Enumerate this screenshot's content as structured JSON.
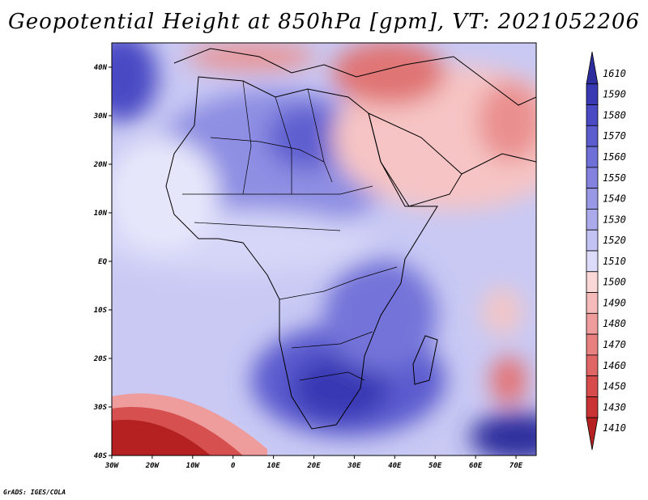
{
  "title": "Geopotential Height at 850hPa [gpm], VT: 2021052206",
  "credit": "GrADS: IGES/COLA",
  "map": {
    "projection": "latlon",
    "lon_range": [
      -30,
      75
    ],
    "lat_range": [
      -40,
      45
    ],
    "lon_ticks": [
      "30W",
      "20W",
      "10W",
      "0",
      "10E",
      "20E",
      "30E",
      "40E",
      "50E",
      "60E",
      "70E"
    ],
    "lat_ticks": [
      "40S",
      "30S",
      "20S",
      "10S",
      "EQ",
      "10N",
      "20N",
      "30N",
      "40N"
    ],
    "field_features": [
      {
        "name": "deep-low",
        "lon": -30,
        "lat": -40,
        "value": 1410
      },
      {
        "name": "high",
        "lon": 22,
        "lat": -27,
        "value": 1590
      },
      {
        "name": "high",
        "lon": 20,
        "lat": 25,
        "value": 1570
      },
      {
        "name": "high",
        "lon": -27,
        "lat": 37,
        "value": 1590
      },
      {
        "name": "low",
        "lon": 38,
        "lat": 39,
        "value": 1470
      },
      {
        "name": "low",
        "lon": 66,
        "lat": -10,
        "value": 1490
      },
      {
        "name": "low",
        "lon": 67,
        "lat": -25,
        "value": 1460
      }
    ]
  },
  "colorbar": {
    "levels": [
      "1610",
      "1590",
      "1580",
      "1570",
      "1560",
      "1550",
      "1540",
      "1530",
      "1520",
      "1510",
      "1500",
      "1490",
      "1480",
      "1470",
      "1460",
      "1450",
      "1430",
      "1410"
    ],
    "colors": [
      "#2d2d9d",
      "#3939b4",
      "#4a4ac4",
      "#5c5ccf",
      "#6f6fd8",
      "#8383df",
      "#9898e6",
      "#ababec",
      "#c2c2f3",
      "#dcdcfa",
      "#fad8d8",
      "#f5baba",
      "#ef9c9c",
      "#e88080",
      "#e06565",
      "#d74b4b",
      "#ca3333",
      "#b52020"
    ]
  }
}
